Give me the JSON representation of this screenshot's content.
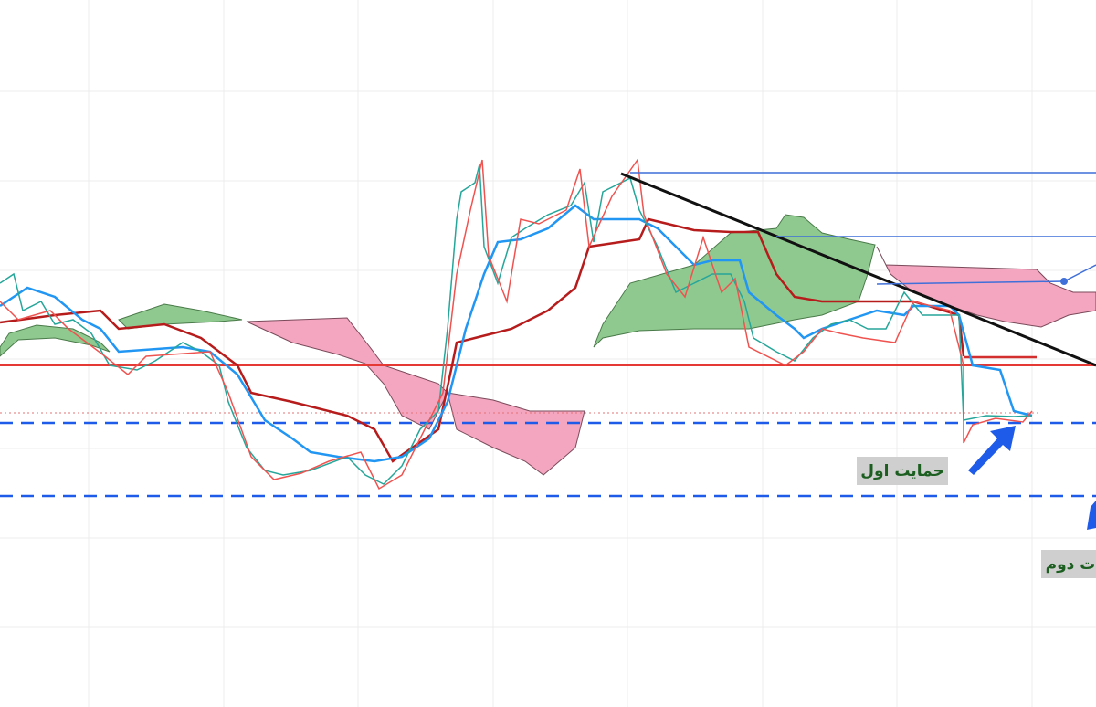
{
  "labels": {
    "support_first": "حمایت اول",
    "support_second": "ت دوم"
  }
}
